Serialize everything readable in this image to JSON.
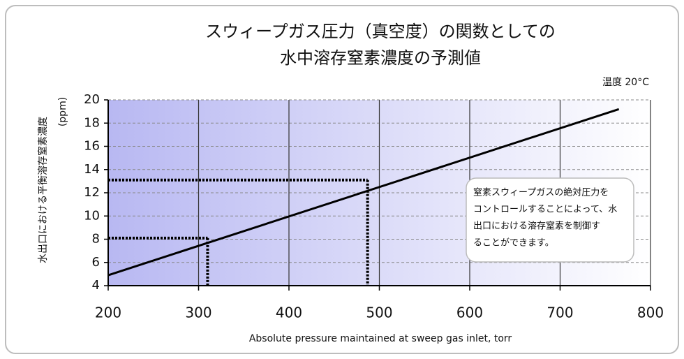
{
  "chart_data": {
    "type": "line",
    "title": [
      "スウィープガス圧力（真空度）の関数としての",
      "水中溶存窒素濃度の予測値"
    ],
    "annotation": "温度 20°C",
    "y_label": [
      "水出口における平衡溶存窒素濃度",
      "(ppm)"
    ],
    "x_label": "Absolute pressure maintained at sweep gas inlet, torr",
    "callout": [
      "窒素スウィープガスの絶対圧力を",
      "コントロールすることによって、水",
      "出口における溶存窒素を制御す",
      "ることができます。"
    ],
    "series": [
      {
        "color": "#000000",
        "x": [
          200,
          765
        ],
        "values": [
          4.9,
          19.2
        ]
      }
    ],
    "guides": [
      {
        "x": 310,
        "y": 8.1
      },
      {
        "x": 487,
        "y": 13.1
      }
    ],
    "xlim": [
      200,
      800
    ],
    "xticks": [
      200,
      300,
      400,
      500,
      600,
      700,
      800
    ],
    "ylim": [
      4,
      20
    ],
    "yticks": [
      4,
      6,
      8,
      10,
      12,
      14,
      16,
      18,
      20
    ],
    "grid": true
  }
}
